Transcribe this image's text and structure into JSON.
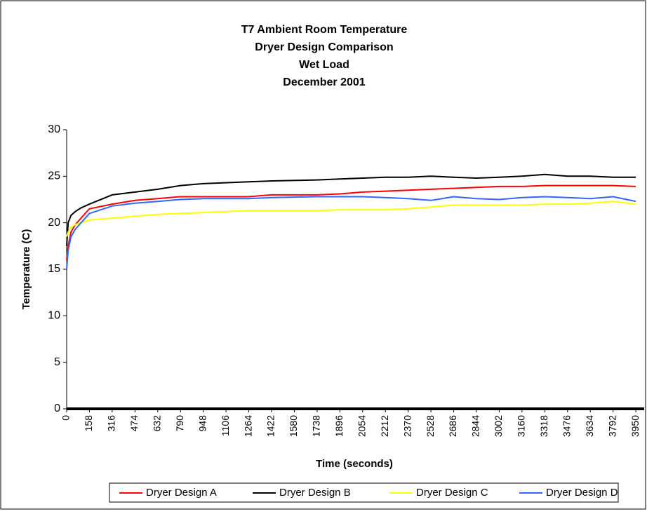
{
  "chart_data": {
    "type": "line",
    "title": [
      "T7 Ambient Room Temperature",
      "Dryer Design Comparison",
      "Wet Load",
      "December 2001"
    ],
    "x_label": "Time (seconds)",
    "y_label": "Temperature (C)",
    "x": [
      0,
      10,
      30,
      60,
      100,
      158,
      316,
      474,
      632,
      790,
      948,
      1264,
      1422,
      1738,
      1896,
      2054,
      2212,
      2370,
      2528,
      2686,
      2844,
      3002,
      3160,
      3318,
      3476,
      3634,
      3792,
      3950
    ],
    "series": [
      {
        "name": "Dryer Design A",
        "color": "#ff0000",
        "values": [
          16,
          17.5,
          19,
          19.8,
          20.5,
          21.5,
          22,
          22.4,
          22.6,
          22.8,
          22.8,
          22.8,
          23,
          23,
          23.1,
          23.3,
          23.4,
          23.5,
          23.6,
          23.7,
          23.8,
          23.9,
          23.9,
          24,
          24,
          24,
          24,
          23.9
        ]
      },
      {
        "name": "Dryer Design B",
        "color": "#000000",
        "values": [
          17.5,
          20,
          20.8,
          21.2,
          21.6,
          22,
          23,
          23.3,
          23.6,
          24,
          24.2,
          24.4,
          24.5,
          24.6,
          24.7,
          24.8,
          24.9,
          24.9,
          25,
          24.9,
          24.8,
          24.9,
          25,
          25.2,
          25,
          25,
          24.9,
          24.9
        ]
      },
      {
        "name": "Dryer Design C",
        "color": "#ffff00",
        "values": [
          18.5,
          19,
          19.5,
          19.8,
          20,
          20.3,
          20.5,
          20.7,
          20.9,
          21,
          21.1,
          21.3,
          21.3,
          21.3,
          21.4,
          21.4,
          21.4,
          21.5,
          21.7,
          21.9,
          21.9,
          21.9,
          21.9,
          22,
          22,
          22.1,
          22.3,
          22
        ]
      },
      {
        "name": "Dryer Design D",
        "color": "#3366ff",
        "values": [
          15,
          17,
          18.5,
          19.3,
          20,
          21,
          21.8,
          22.1,
          22.3,
          22.5,
          22.6,
          22.6,
          22.7,
          22.8,
          22.8,
          22.8,
          22.7,
          22.6,
          22.4,
          22.8,
          22.6,
          22.5,
          22.7,
          22.8,
          22.7,
          22.6,
          22.8,
          22.3
        ]
      }
    ],
    "xlim": [
      0,
      4008
    ],
    "xticks": [
      0,
      158,
      316,
      474,
      632,
      790,
      948,
      1106,
      1264,
      1422,
      1580,
      1738,
      1896,
      2054,
      2212,
      2370,
      2528,
      2686,
      2844,
      3002,
      3160,
      3318,
      3476,
      3634,
      3792,
      3950
    ],
    "ylim": [
      0,
      30
    ],
    "yticks": [
      0,
      5,
      10,
      15,
      20,
      25,
      30
    ],
    "grid": false,
    "legend": "bottom"
  }
}
